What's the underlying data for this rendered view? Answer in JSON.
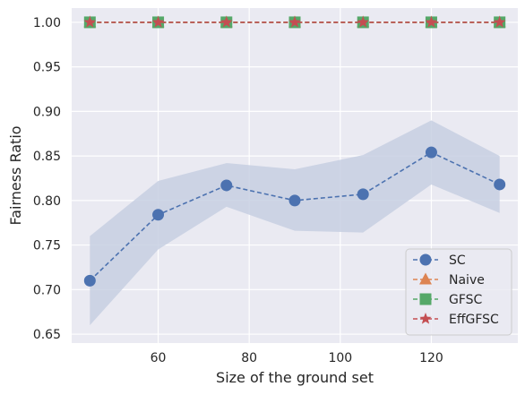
{
  "chart_data": {
    "type": "line",
    "title": "",
    "xlabel": "Size of the ground set",
    "ylabel": "Fairness Ratio",
    "xlim": [
      41,
      139
    ],
    "ylim": [
      0.64,
      1.016
    ],
    "x_ticks": [
      60,
      80,
      100,
      120
    ],
    "y_ticks": [
      0.65,
      0.7,
      0.75,
      0.8,
      0.85,
      0.9,
      0.95,
      1.0
    ],
    "x": [
      45,
      60,
      75,
      90,
      105,
      120,
      135
    ],
    "grid": true,
    "legend_position": "lower-right",
    "colors": {
      "background": "#eaeaf2",
      "grid": "#ffffff",
      "band": "#c7cfe2"
    },
    "series": [
      {
        "name": "SC",
        "color": "#4c72b0",
        "marker": "circle",
        "linestyle": "dashed",
        "values": [
          0.71,
          0.784,
          0.817,
          0.8,
          0.807,
          0.854,
          0.818
        ],
        "band_lower": [
          0.66,
          0.745,
          0.793,
          0.766,
          0.764,
          0.818,
          0.786
        ],
        "band_upper": [
          0.76,
          0.822,
          0.842,
          0.835,
          0.851,
          0.89,
          0.85
        ]
      },
      {
        "name": "Naive",
        "color": "#dd8452",
        "marker": "triangle",
        "linestyle": "dashed",
        "values": [
          1.0,
          1.0,
          1.0,
          1.0,
          1.0,
          1.0,
          1.0
        ]
      },
      {
        "name": "GFSC",
        "color": "#55a868",
        "marker": "square",
        "linestyle": "dashed",
        "values": [
          1.0,
          1.0,
          1.0,
          1.0,
          1.0,
          1.0,
          1.0
        ]
      },
      {
        "name": "EffGFSC",
        "color": "#c44e52",
        "marker": "star",
        "linestyle": "dashed",
        "values": [
          1.0,
          1.0,
          1.0,
          1.0,
          1.0,
          1.0,
          1.0
        ]
      }
    ]
  }
}
